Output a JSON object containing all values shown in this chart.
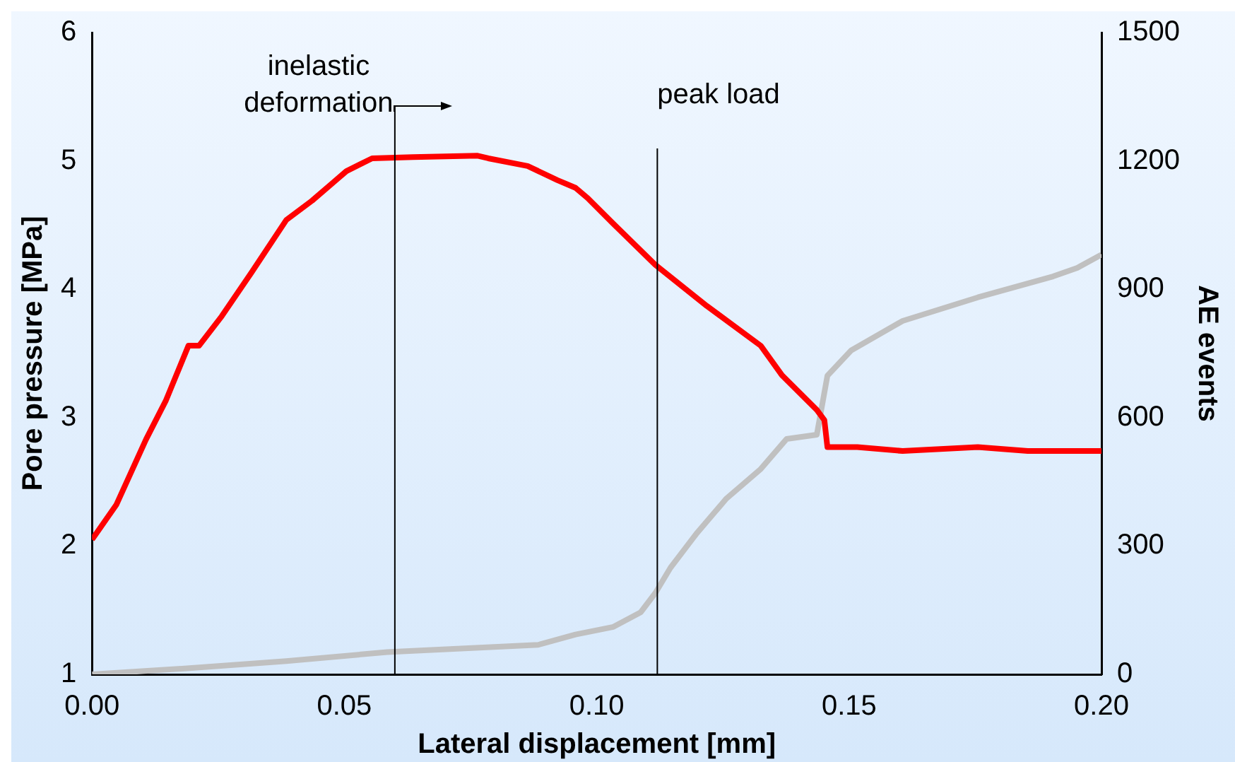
{
  "chart_data": {
    "type": "line",
    "xlabel": "Lateral displacement [mm]",
    "ylabel": "Pore pressure [MPa]",
    "y2label": "AE events",
    "xlim": [
      0,
      0.2
    ],
    "xticks": [
      {
        "value": 0,
        "label": "0.00"
      },
      {
        "value": 0.05,
        "label": "0.05"
      },
      {
        "value": 0.1,
        "label": "0.10"
      },
      {
        "value": 0.15,
        "label": "0.15"
      },
      {
        "value": 0.2,
        "label": "0.20"
      }
    ],
    "ylim": [
      1,
      6
    ],
    "yticks": [
      1,
      2,
      3,
      4,
      5,
      6
    ],
    "y2lim": [
      0,
      1500
    ],
    "y2ticks": [
      0,
      300,
      600,
      900,
      1200,
      1500
    ],
    "grid": false,
    "legend": false,
    "marker": "none",
    "line_style": "solid",
    "series": [
      {
        "color": "#ff0000",
        "x": [
          0,
          0.0048,
          0.0107,
          0.0146,
          0.0191,
          0.0212,
          0.0257,
          0.0316,
          0.0385,
          0.0436,
          0.0504,
          0.0555,
          0.0636,
          0.0764,
          0.0785,
          0.0863,
          0.0922,
          0.0958,
          0.0982,
          0.1033,
          0.1116,
          0.1218,
          0.1325,
          0.1367,
          0.1436,
          0.1451,
          0.1457,
          0.1516,
          0.1606,
          0.1755,
          0.1854,
          0.2
        ],
        "values": [
          2.05,
          2.32,
          2.83,
          3.13,
          3.56,
          3.56,
          3.79,
          4.13,
          4.54,
          4.69,
          4.92,
          5.02,
          5.03,
          5.04,
          5.02,
          4.96,
          4.85,
          4.79,
          4.71,
          4.51,
          4.19,
          3.87,
          3.56,
          3.33,
          3.06,
          2.98,
          2.77,
          2.77,
          2.74,
          2.77,
          2.74,
          2.74
        ]
      },
      {
        "color": "#c0c0c0",
        "axis": "y2",
        "x": [
          0,
          0.0188,
          0.0385,
          0.0585,
          0.0884,
          0.0958,
          0.1033,
          0.1087,
          0.1116,
          0.1146,
          0.1197,
          0.1257,
          0.1325,
          0.1376,
          0.1436,
          0.1457,
          0.1504,
          0.1606,
          0.1755,
          0.1904,
          0.1952,
          0.2
        ],
        "values": [
          0,
          14,
          31,
          52,
          69,
          93,
          111,
          145,
          190,
          249,
          328,
          411,
          480,
          550,
          560,
          698,
          757,
          826,
          881,
          930,
          950,
          981
        ]
      }
    ],
    "ref_lines": [
      {
        "axis": "x",
        "value": 0.06,
        "label": "inelastic\ndeformation",
        "color": "#000000"
      },
      {
        "axis": "x",
        "value": 0.112,
        "label": "peak load",
        "color": "#000000"
      }
    ]
  }
}
